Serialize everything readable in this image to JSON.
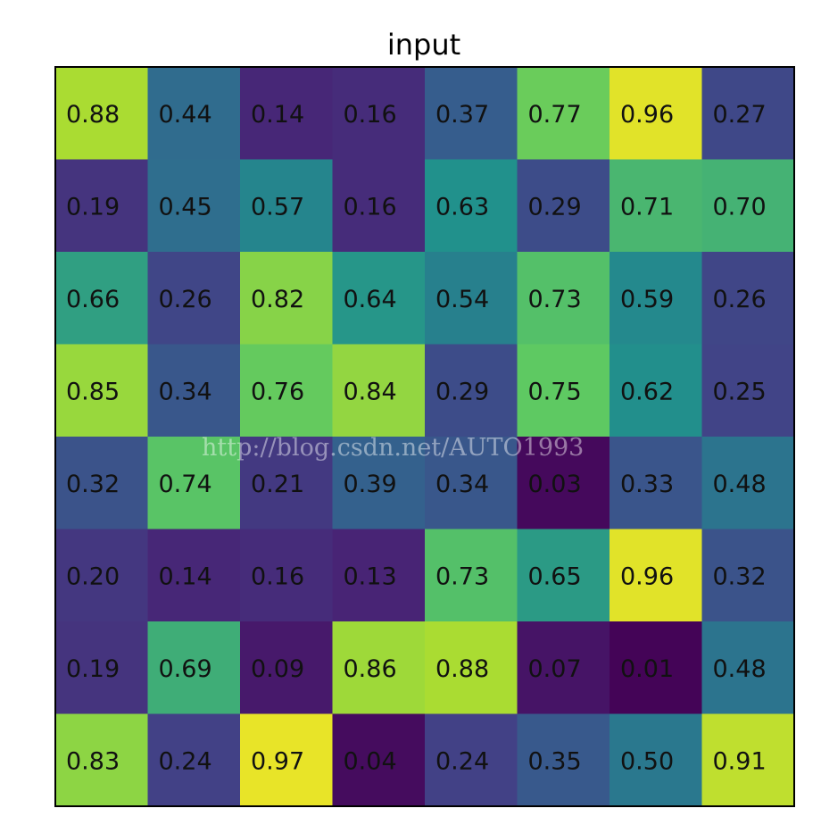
{
  "chart_data": {
    "type": "heatmap",
    "title": "input",
    "colormap": "viridis",
    "value_range": [
      0,
      1
    ],
    "value_format": "2 decimals",
    "grid": false,
    "values": [
      [
        0.88,
        0.44,
        0.14,
        0.16,
        0.37,
        0.77,
        0.96,
        0.27
      ],
      [
        0.19,
        0.45,
        0.57,
        0.16,
        0.63,
        0.29,
        0.71,
        0.7
      ],
      [
        0.66,
        0.26,
        0.82,
        0.64,
        0.54,
        0.73,
        0.59,
        0.26
      ],
      [
        0.85,
        0.34,
        0.76,
        0.84,
        0.29,
        0.75,
        0.62,
        0.25
      ],
      [
        0.32,
        0.74,
        0.21,
        0.39,
        0.34,
        0.03,
        0.33,
        0.48
      ],
      [
        0.2,
        0.14,
        0.16,
        0.13,
        0.73,
        0.65,
        0.96,
        0.32
      ],
      [
        0.19,
        0.69,
        0.09,
        0.86,
        0.88,
        0.07,
        0.01,
        0.48
      ],
      [
        0.83,
        0.24,
        0.97,
        0.04,
        0.24,
        0.35,
        0.5,
        0.91
      ]
    ]
  },
  "watermark": "http://blog.csdn.net/AUTO1993"
}
